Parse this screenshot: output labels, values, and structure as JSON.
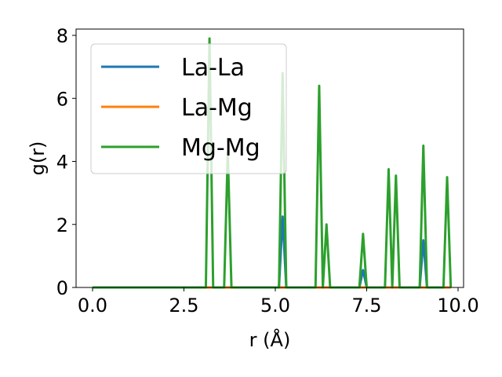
{
  "chart_data": {
    "type": "line",
    "xlabel": "r (Å)",
    "ylabel": "g(r)",
    "xlim": [
      -0.45,
      10.15
    ],
    "ylim": [
      0,
      8.2
    ],
    "xticks": [
      0.0,
      2.5,
      5.0,
      7.5,
      10.0
    ],
    "xtick_labels": [
      "0.0",
      "2.5",
      "5.0",
      "7.5",
      "10.0"
    ],
    "yticks": [
      0,
      2,
      4,
      6,
      8
    ],
    "ytick_labels": [
      "0",
      "2",
      "4",
      "6",
      "8"
    ],
    "grid": false,
    "legend_position": "top-left",
    "series": [
      {
        "name": "La-La",
        "color": "#1f77b4",
        "x": [
          0.0,
          5.1,
          5.2,
          5.3,
          7.3,
          7.4,
          7.5,
          8.95,
          9.05,
          9.15,
          9.8
        ],
        "y": [
          0,
          0,
          2.25,
          0,
          0,
          0.55,
          0,
          0,
          1.5,
          0,
          0
        ]
      },
      {
        "name": "La-Mg",
        "color": "#ff7f0e",
        "x": [
          0.0,
          9.8
        ],
        "y": [
          0,
          0
        ]
      },
      {
        "name": "Mg-Mg",
        "color": "#2ca02c",
        "x": [
          0.0,
          3.1,
          3.2,
          3.3,
          3.6,
          3.7,
          3.8,
          5.1,
          5.2,
          5.3,
          6.1,
          6.2,
          6.3,
          6.4,
          6.5,
          7.3,
          7.4,
          7.5,
          8.0,
          8.1,
          8.2,
          8.3,
          8.4,
          8.95,
          9.05,
          9.15,
          9.6,
          9.7,
          9.8
        ],
        "y": [
          0,
          0,
          7.9,
          0,
          0,
          4.3,
          0,
          0,
          6.8,
          0,
          0,
          6.4,
          0,
          2.0,
          0,
          0,
          1.7,
          0,
          0,
          3.75,
          0,
          3.55,
          0,
          0,
          4.5,
          0,
          0,
          3.5,
          0
        ]
      }
    ]
  }
}
